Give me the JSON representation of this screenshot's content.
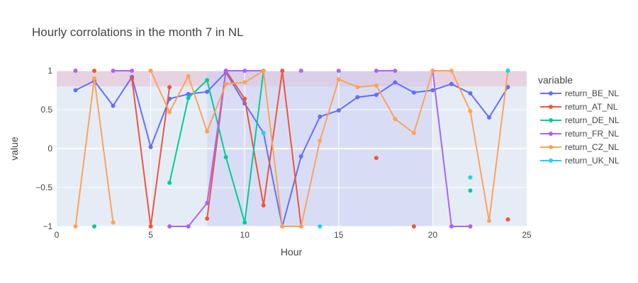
{
  "chart_data": {
    "type": "line",
    "title": "Hourly corrolations in the month 7 in NL",
    "xlabel": "Hour",
    "ylabel": "value",
    "xlim": [
      0,
      25
    ],
    "ylim": [
      -1,
      1
    ],
    "xticks": [
      0,
      5,
      10,
      15,
      20,
      25
    ],
    "xtick_labels": [
      "0",
      "5",
      "10",
      "15",
      "20",
      "25"
    ],
    "yticks": [
      -1,
      -0.5,
      0,
      0.5,
      1
    ],
    "ytick_labels": [
      "−1",
      "−0.5",
      "0",
      "0.5",
      "1"
    ],
    "grid": true,
    "legend_title": "variable",
    "legend_position": "right",
    "shaded_regions": [
      {
        "axis": "y",
        "from": 0.8,
        "to": 1.0,
        "color": "#e8b4c8"
      },
      {
        "axis": "x",
        "from": 8,
        "to": 20,
        "color": "#c8cdf5"
      }
    ],
    "series": [
      {
        "name": "return_BE_NL",
        "color": "#636efa",
        "points": [
          [
            1,
            0.75
          ],
          [
            2,
            0.87
          ],
          [
            3,
            0.55
          ],
          [
            4,
            0.92
          ],
          [
            5,
            0.02
          ],
          [
            6,
            0.64
          ],
          [
            7,
            0.7
          ],
          [
            8,
            0.73
          ],
          [
            9,
            0.98
          ],
          [
            10,
            0.58
          ],
          [
            11,
            0.2
          ],
          [
            12,
            -1.0
          ],
          [
            13,
            -0.1
          ],
          [
            14,
            0.41
          ],
          [
            15,
            0.49
          ],
          [
            16,
            0.66
          ],
          [
            17,
            0.69
          ],
          [
            18,
            0.85
          ],
          [
            19,
            0.72
          ],
          [
            20,
            0.75
          ],
          [
            21,
            0.83
          ],
          [
            22,
            0.71
          ],
          [
            23,
            0.4
          ],
          [
            24,
            0.79
          ]
        ]
      },
      {
        "name": "return_AT_NL",
        "color": "#ef553b",
        "points": [
          [
            2,
            1.0
          ],
          [
            4,
            0.9
          ],
          [
            5,
            -1.0
          ],
          [
            6,
            0.79
          ],
          [
            8,
            -0.9
          ],
          [
            9,
            1.0
          ],
          [
            10,
            0.64
          ],
          [
            11,
            -0.73
          ],
          [
            12,
            1.0
          ],
          [
            13,
            -1.0
          ],
          [
            17,
            -0.12
          ],
          [
            19,
            -1.0
          ],
          [
            24,
            -0.91
          ]
        ]
      },
      {
        "name": "return_DE_NL",
        "color": "#00cc96",
        "points": [
          [
            2,
            -1.0
          ],
          [
            6,
            -0.44
          ],
          [
            7,
            0.65
          ],
          [
            8,
            0.88
          ],
          [
            9,
            -0.11
          ],
          [
            10,
            -0.95
          ],
          [
            11,
            1.0
          ],
          [
            22,
            -0.54
          ],
          [
            24,
            1.0
          ]
        ]
      },
      {
        "name": "return_FR_NL",
        "color": "#ab63fa",
        "points": [
          [
            1,
            1.0
          ],
          [
            3,
            1.0
          ],
          [
            4,
            1.0
          ],
          [
            6,
            -1.0
          ],
          [
            7,
            -1.0
          ],
          [
            8,
            -0.7
          ],
          [
            9,
            1.0
          ],
          [
            10,
            1.0
          ],
          [
            11,
            1.0
          ],
          [
            13,
            1.0
          ],
          [
            15,
            1.0
          ],
          [
            17,
            1.0
          ],
          [
            18,
            1.0
          ],
          [
            20,
            1.0
          ],
          [
            21,
            -1.0
          ],
          [
            22,
            -1.0
          ]
        ]
      },
      {
        "name": "return_CZ_NL",
        "color": "#ffa15a",
        "points": [
          [
            1,
            -1.0
          ],
          [
            2,
            0.9
          ],
          [
            3,
            -0.95
          ],
          [
            5,
            1.0
          ],
          [
            6,
            0.47
          ],
          [
            7,
            0.93
          ],
          [
            8,
            0.22
          ],
          [
            9,
            0.83
          ],
          [
            10,
            0.85
          ],
          [
            11,
            1.0
          ],
          [
            12,
            -1.0
          ],
          [
            13,
            -1.0
          ],
          [
            14,
            0.1
          ],
          [
            15,
            0.89
          ],
          [
            16,
            0.79
          ],
          [
            17,
            0.81
          ],
          [
            18,
            0.38
          ],
          [
            19,
            0.2
          ],
          [
            20,
            1.0
          ],
          [
            21,
            1.0
          ],
          [
            22,
            0.48
          ],
          [
            23,
            -0.93
          ],
          [
            24,
            1.0
          ]
        ]
      },
      {
        "name": "return_UK_NL",
        "color": "#19d3f3",
        "points": [
          [
            11,
            0.2
          ],
          [
            14,
            -1.0
          ],
          [
            22,
            -0.37
          ],
          [
            24,
            1.0
          ]
        ]
      }
    ]
  }
}
